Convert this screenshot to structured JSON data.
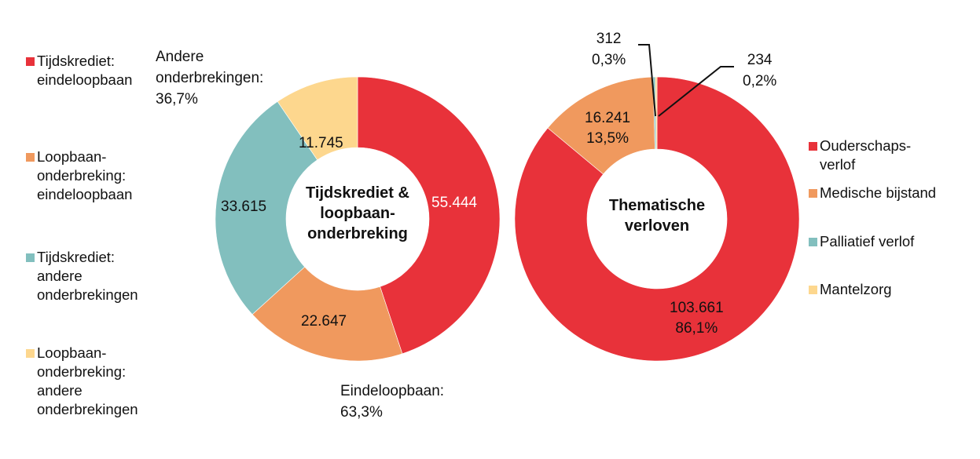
{
  "colors": {
    "red": "#E8323A",
    "orange": "#F0995E",
    "teal": "#82BFBE",
    "yellow": "#FDD78E"
  },
  "chart_data": [
    {
      "type": "pie",
      "donut": true,
      "center_label": "Tijdskrediet & loopbaan-onderbreking",
      "center_lines": [
        "Tijdskrediet &",
        "loopbaan-",
        "onderbreking"
      ],
      "categories": [
        "Tijdskrediet: eindeloopbaan",
        "Loopbaan-onderbreking: eindeloopbaan",
        "Tijdskrediet: andere onderbrekingen",
        "Loopbaan-onderbreking: andere onderbrekingen"
      ],
      "values": [
        55444,
        22647,
        33615,
        11745
      ],
      "value_labels": [
        "55.444",
        "22.647",
        "33.615",
        "11.745"
      ],
      "slice_colors": [
        "#E8323A",
        "#F0995E",
        "#82BFBE",
        "#FDD78E"
      ],
      "group_annotations": [
        {
          "lines": [
            "Andere",
            "onderbrekingen:",
            "36,7%"
          ]
        },
        {
          "lines": [
            "Eindeloopbaan:",
            "63,3%"
          ]
        }
      ],
      "legend": {
        "placement": "left",
        "entries": [
          {
            "lines": [
              "Tijdskrediet:",
              "eindeloopbaan"
            ],
            "color": "#E8323A"
          },
          {
            "lines": [
              "Loopbaan-",
              "onderbreking:",
              "eindeloopbaan"
            ],
            "color": "#F0995E"
          },
          {
            "lines": [
              "Tijdskrediet:",
              "andere",
              "onderbrekingen"
            ],
            "color": "#82BFBE"
          },
          {
            "lines": [
              "Loopbaan-",
              "onderbreking:",
              "andere",
              "onderbrekingen"
            ],
            "color": "#FDD78E"
          }
        ]
      }
    },
    {
      "type": "pie",
      "donut": true,
      "center_label": "Thematische verloven",
      "center_lines": [
        "Thematische",
        "verloven"
      ],
      "categories": [
        "Ouderschapsverlof",
        "Medische bijstand",
        "Palliatief verlof",
        "Mantelzorg"
      ],
      "values": [
        103661,
        16241,
        312,
        234
      ],
      "value_labels": [
        [
          "103.661",
          "86,1%"
        ],
        [
          "16.241",
          "13,5%"
        ],
        [
          "312",
          "0,3%"
        ],
        [
          "234",
          "0,2%"
        ]
      ],
      "slice_colors": [
        "#E8323A",
        "#F0995E",
        "#82BFBE",
        "#FDD78E"
      ],
      "legend": {
        "placement": "right",
        "entries": [
          {
            "lines": [
              "Ouderschaps-",
              "verlof"
            ],
            "color": "#E8323A"
          },
          {
            "lines": [
              "Medische bijstand"
            ],
            "color": "#F0995E"
          },
          {
            "lines": [
              "Palliatief verlof"
            ],
            "color": "#82BFBE"
          },
          {
            "lines": [
              "Mantelzorg"
            ],
            "color": "#FDD78E"
          }
        ]
      }
    }
  ]
}
